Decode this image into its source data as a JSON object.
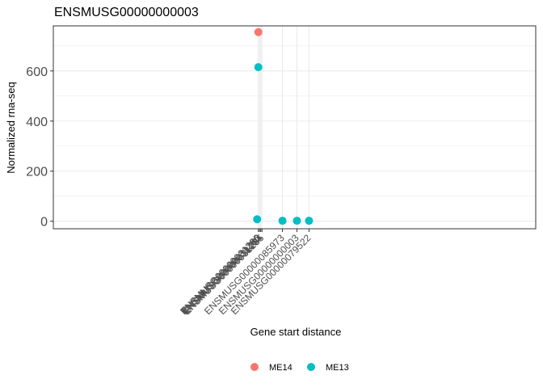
{
  "chart_data": {
    "type": "scatter",
    "title": "ENSMUSG00000000003",
    "xlabel": "Gene start distance",
    "ylabel": "Normalized rna-seq",
    "ylim": [
      -30,
      780
    ],
    "yticks": [
      0,
      200,
      400,
      600
    ],
    "grid": true,
    "legend_position": "bottom",
    "x_tick_labels": [
      {
        "label": "ENSMUSG00000031286",
        "x": 0.0
      },
      {
        "label": "ENSMUSG00000031283",
        "x": 0.05
      },
      {
        "label": "ENSMUSG00000031284",
        "x": 0.1
      },
      {
        "label": "ENSMUSG00000031285",
        "x": 0.15
      },
      {
        "label": "ENSMUSG00000085973",
        "x": 1.0
      },
      {
        "label": "ENSMUSG00000000003",
        "x": 1.6
      },
      {
        "label": "ENSMUSG00000079522",
        "x": 2.1
      }
    ],
    "xlim": [
      -8.5,
      11.5
    ],
    "series": [
      {
        "name": "ME14",
        "color": "#F8766D",
        "points": [
          {
            "x": 0.0,
            "y": 755
          }
        ]
      },
      {
        "name": "ME13",
        "color": "#00BFC4",
        "points": [
          {
            "x": 0.0,
            "y": 615
          },
          {
            "x": -0.05,
            "y": 8
          },
          {
            "x": 1.0,
            "y": 2
          },
          {
            "x": 1.6,
            "y": 2
          },
          {
            "x": 2.1,
            "y": 2
          }
        ]
      }
    ]
  }
}
